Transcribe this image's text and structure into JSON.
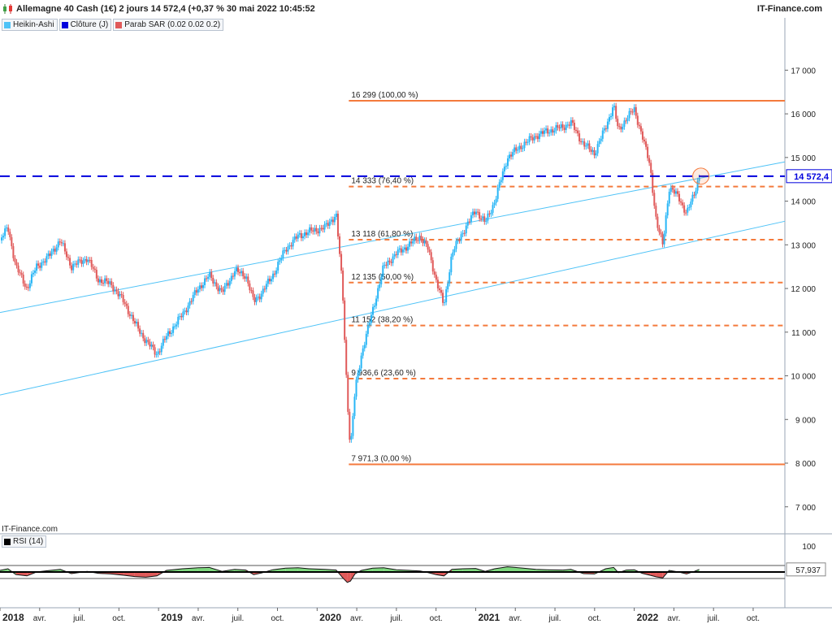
{
  "header": {
    "title": "Allemagne 40 Cash (1€) 2 jours 14 572,4 (+0,37 % 30 mai 2022 10:45:52",
    "brand": "IT-Finance.com"
  },
  "legend": [
    {
      "label": "Heikin-Ashi",
      "color": "#4fc3f7"
    },
    {
      "label": "Clôture (J)",
      "color": "#0000dd"
    },
    {
      "label": "Parab SAR (0.02 0.02 0.2)",
      "color": "#e05a5a"
    }
  ],
  "source": "IT-Finance.com",
  "rsi": {
    "label": "RSI (14)",
    "color": "#000000",
    "axis_top": "100",
    "current_label": "57,937",
    "upper_band": 70,
    "lower_band": 30,
    "mid": 50,
    "current": 57.937
  },
  "colors": {
    "fib_line": "#f47a3c",
    "close_line": "#0000dd",
    "channel": "#4fc3f7",
    "up_candle": "#29b6f6",
    "down_candle": "#e05a5a",
    "rsi_up_fill": "#7ed87e",
    "rsi_down_fill": "#e05a5a"
  },
  "chart_data": {
    "type": "line",
    "instrument": "Allemagne 40 Cash (1€)",
    "last_price": 14572.4,
    "last_price_label": "14 572,4",
    "ylim": [
      6400,
      17900
    ],
    "y_ticks": [
      {
        "v": 17000,
        "label": "17 000"
      },
      {
        "v": 16000,
        "label": "16 000"
      },
      {
        "v": 15000,
        "label": "15 000"
      },
      {
        "v": 14000,
        "label": "14 000"
      },
      {
        "v": 13000,
        "label": "13 000"
      },
      {
        "v": 12000,
        "label": "12 000"
      },
      {
        "v": 11000,
        "label": "11 000"
      },
      {
        "v": 10000,
        "label": "10 000"
      },
      {
        "v": 9000,
        "label": "9 000"
      },
      {
        "v": 8000,
        "label": "8 000"
      },
      {
        "v": 7000,
        "label": "7 000"
      }
    ],
    "xlim": [
      2018.0,
      2022.95
    ],
    "x_ticks": [
      {
        "t": 2018.0,
        "label": "2018",
        "major": true
      },
      {
        "t": 2018.25,
        "label": "avr.",
        "major": false
      },
      {
        "t": 2018.5,
        "label": "juil.",
        "major": false
      },
      {
        "t": 2018.75,
        "label": "oct.",
        "major": false
      },
      {
        "t": 2019.0,
        "label": "2019",
        "major": true
      },
      {
        "t": 2019.25,
        "label": "avr.",
        "major": false
      },
      {
        "t": 2019.5,
        "label": "juil.",
        "major": false
      },
      {
        "t": 2019.75,
        "label": "oct.",
        "major": false
      },
      {
        "t": 2020.0,
        "label": "2020",
        "major": true
      },
      {
        "t": 2020.25,
        "label": "avr.",
        "major": false
      },
      {
        "t": 2020.5,
        "label": "juil.",
        "major": false
      },
      {
        "t": 2020.75,
        "label": "oct.",
        "major": false
      },
      {
        "t": 2021.0,
        "label": "2021",
        "major": true
      },
      {
        "t": 2021.25,
        "label": "avr.",
        "major": false
      },
      {
        "t": 2021.5,
        "label": "juil.",
        "major": false
      },
      {
        "t": 2021.75,
        "label": "oct.",
        "major": false
      },
      {
        "t": 2022.0,
        "label": "2022",
        "major": true
      },
      {
        "t": 2022.25,
        "label": "avr.",
        "major": false
      },
      {
        "t": 2022.5,
        "label": "juil.",
        "major": false
      },
      {
        "t": 2022.75,
        "label": "oct.",
        "major": false
      }
    ],
    "fib_start_t": 2020.2,
    "fib_levels": [
      {
        "v": 16299,
        "label": "16 299 (100,00 %)",
        "solid": true
      },
      {
        "v": 14333,
        "label": "14 333 (76,40 %)",
        "solid": false
      },
      {
        "v": 13118,
        "label": "13 118 (61,80 %)",
        "solid": false
      },
      {
        "v": 12135,
        "label": "12 135 (50,00 %)",
        "solid": false
      },
      {
        "v": 11152,
        "label": "11 152 (38,20 %)",
        "solid": false
      },
      {
        "v": 9936.6,
        "label": "9 936,6 (23,60 %)",
        "solid": false
      },
      {
        "v": 7971.3,
        "label": "7 971,3 (0,00 %)",
        "solid": true
      }
    ],
    "channel_lines": [
      {
        "from": [
          2018.0,
          11450
        ],
        "to": [
          2022.95,
          14900
        ]
      },
      {
        "from": [
          2018.0,
          9560
        ],
        "to": [
          2022.95,
          13540
        ]
      }
    ],
    "price_path": [
      [
        2018.0,
        13100
      ],
      [
        2018.05,
        13400
      ],
      [
        2018.1,
        12500
      ],
      [
        2018.17,
        12000
      ],
      [
        2018.23,
        12500
      ],
      [
        2018.3,
        12700
      ],
      [
        2018.38,
        13100
      ],
      [
        2018.45,
        12500
      ],
      [
        2018.55,
        12700
      ],
      [
        2018.62,
        12200
      ],
      [
        2018.7,
        12100
      ],
      [
        2018.78,
        11700
      ],
      [
        2018.85,
        11200
      ],
      [
        2018.92,
        10800
      ],
      [
        2018.99,
        10500
      ],
      [
        2019.05,
        10900
      ],
      [
        2019.15,
        11400
      ],
      [
        2019.25,
        12000
      ],
      [
        2019.32,
        12300
      ],
      [
        2019.4,
        11900
      ],
      [
        2019.48,
        12400
      ],
      [
        2019.55,
        12300
      ],
      [
        2019.6,
        11700
      ],
      [
        2019.65,
        11900
      ],
      [
        2019.72,
        12300
      ],
      [
        2019.8,
        12900
      ],
      [
        2019.88,
        13200
      ],
      [
        2019.95,
        13300
      ],
      [
        2020.05,
        13400
      ],
      [
        2020.12,
        13700
      ],
      [
        2020.16,
        12000
      ],
      [
        2020.19,
        9500
      ],
      [
        2020.21,
        8300
      ],
      [
        2020.24,
        9700
      ],
      [
        2020.28,
        10500
      ],
      [
        2020.35,
        11500
      ],
      [
        2020.42,
        12500
      ],
      [
        2020.5,
        12800
      ],
      [
        2020.58,
        13000
      ],
      [
        2020.65,
        13200
      ],
      [
        2020.7,
        12900
      ],
      [
        2020.75,
        12200
      ],
      [
        2020.8,
        11600
      ],
      [
        2020.85,
        12800
      ],
      [
        2020.92,
        13300
      ],
      [
        2021.0,
        13800
      ],
      [
        2021.06,
        13500
      ],
      [
        2021.12,
        14000
      ],
      [
        2021.2,
        15000
      ],
      [
        2021.3,
        15300
      ],
      [
        2021.38,
        15500
      ],
      [
        2021.45,
        15600
      ],
      [
        2021.55,
        15700
      ],
      [
        2021.6,
        15800
      ],
      [
        2021.68,
        15300
      ],
      [
        2021.75,
        15100
      ],
      [
        2021.82,
        15700
      ],
      [
        2021.87,
        16200
      ],
      [
        2021.9,
        15600
      ],
      [
        2021.95,
        15900
      ],
      [
        2022.0,
        16100
      ],
      [
        2022.05,
        15500
      ],
      [
        2022.1,
        14800
      ],
      [
        2022.14,
        13500
      ],
      [
        2022.18,
        13000
      ],
      [
        2022.22,
        14300
      ],
      [
        2022.28,
        14100
      ],
      [
        2022.33,
        13700
      ],
      [
        2022.38,
        14200
      ],
      [
        2022.41,
        14572.4
      ]
    ],
    "rsi_path": [
      [
        2018.0,
        55
      ],
      [
        2018.05,
        60
      ],
      [
        2018.1,
        42
      ],
      [
        2018.17,
        38
      ],
      [
        2018.23,
        50
      ],
      [
        2018.3,
        54
      ],
      [
        2018.38,
        58
      ],
      [
        2018.45,
        45
      ],
      [
        2018.55,
        52
      ],
      [
        2018.62,
        46
      ],
      [
        2018.7,
        44
      ],
      [
        2018.78,
        40
      ],
      [
        2018.85,
        36
      ],
      [
        2018.92,
        34
      ],
      [
        2018.99,
        38
      ],
      [
        2019.05,
        55
      ],
      [
        2019.15,
        60
      ],
      [
        2019.25,
        63
      ],
      [
        2019.32,
        64
      ],
      [
        2019.4,
        52
      ],
      [
        2019.48,
        58
      ],
      [
        2019.55,
        56
      ],
      [
        2019.6,
        42
      ],
      [
        2019.65,
        47
      ],
      [
        2019.72,
        57
      ],
      [
        2019.8,
        62
      ],
      [
        2019.88,
        63
      ],
      [
        2019.95,
        60
      ],
      [
        2020.05,
        58
      ],
      [
        2020.12,
        56
      ],
      [
        2020.16,
        33
      ],
      [
        2020.19,
        18
      ],
      [
        2020.21,
        22
      ],
      [
        2020.24,
        45
      ],
      [
        2020.28,
        55
      ],
      [
        2020.35,
        62
      ],
      [
        2020.42,
        63
      ],
      [
        2020.5,
        57
      ],
      [
        2020.58,
        55
      ],
      [
        2020.65,
        53
      ],
      [
        2020.7,
        48
      ],
      [
        2020.75,
        42
      ],
      [
        2020.8,
        38
      ],
      [
        2020.85,
        58
      ],
      [
        2020.92,
        60
      ],
      [
        2021.0,
        61
      ],
      [
        2021.06,
        52
      ],
      [
        2021.12,
        60
      ],
      [
        2021.2,
        66
      ],
      [
        2021.3,
        62
      ],
      [
        2021.38,
        58
      ],
      [
        2021.45,
        57
      ],
      [
        2021.55,
        56
      ],
      [
        2021.6,
        58
      ],
      [
        2021.68,
        45
      ],
      [
        2021.75,
        44
      ],
      [
        2021.82,
        60
      ],
      [
        2021.87,
        64
      ],
      [
        2021.9,
        48
      ],
      [
        2021.95,
        56
      ],
      [
        2022.0,
        57
      ],
      [
        2022.05,
        46
      ],
      [
        2022.1,
        40
      ],
      [
        2022.14,
        35
      ],
      [
        2022.18,
        32
      ],
      [
        2022.22,
        55
      ],
      [
        2022.28,
        50
      ],
      [
        2022.33,
        44
      ],
      [
        2022.38,
        52
      ],
      [
        2022.41,
        57.937
      ]
    ]
  }
}
